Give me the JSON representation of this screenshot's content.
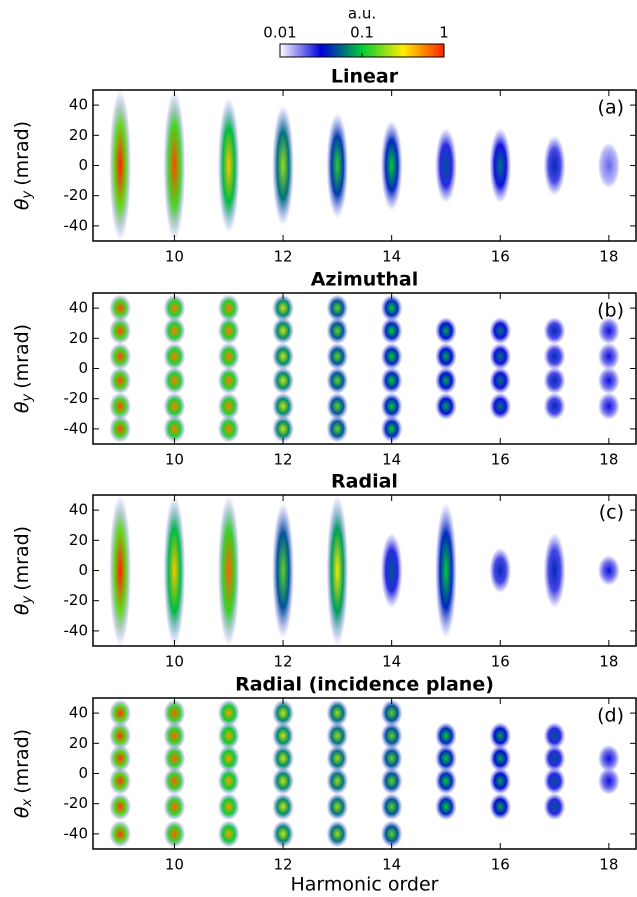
{
  "chart_data": [
    {
      "type": "heatmap",
      "title": "Linear",
      "panel": "(a)",
      "ylabel": {
        "symbol": "θ",
        "sub": "y",
        "unit": "(mrad)"
      },
      "colorbar": {
        "label": "a.u.",
        "lim": [
          0.01,
          1
        ],
        "ticks": [
          1,
          {
            "value": 0.1,
            "label": "0.1"
          },
          {
            "value": 0.01,
            "label": "0.01"
          }
        ],
        "log": true,
        "colormap": [
          "#ffffff",
          "#0000dd",
          "#00cc33",
          "#ffee00",
          "#ff2200"
        ]
      },
      "x": [
        9,
        10,
        11,
        12,
        13,
        14,
        15,
        16,
        17,
        18
      ],
      "values": [
        1,
        0.8,
        0.4,
        0.2,
        0.12,
        0.1,
        0.05,
        0.06,
        0.04,
        0.02
      ],
      "half_height": [
        50,
        50,
        45,
        40,
        35,
        30,
        25,
        25,
        20,
        15
      ],
      "lobes": [
        0
      ],
      "xlim": [
        8.5,
        18.5
      ],
      "ylim": [
        -50,
        50
      ],
      "xticks": [
        10,
        12,
        14,
        16,
        18
      ],
      "yticks": [
        -40,
        -20,
        0,
        20,
        40
      ]
    },
    {
      "type": "heatmap",
      "title": "Azimuthal",
      "panel": "(b)",
      "ylabel": {
        "symbol": "θ",
        "sub": "y",
        "unit": "(mrad)"
      },
      "x": [
        9,
        10,
        11,
        12,
        13,
        14,
        15,
        16,
        17,
        18
      ],
      "values": [
        0.8,
        0.6,
        0.6,
        0.25,
        0.15,
        0.1,
        0.08,
        0.06,
        0.04,
        0.03
      ],
      "half_height": [
        50,
        50,
        50,
        45,
        42,
        40,
        35,
        30,
        30,
        25
      ],
      "lobes": [
        -40,
        -25,
        -8,
        8,
        25,
        40
      ],
      "xlim": [
        8.5,
        18.5
      ],
      "ylim": [
        -50,
        50
      ],
      "xticks": [
        10,
        12,
        14,
        16,
        18
      ],
      "yticks": [
        -40,
        -20,
        0,
        20,
        40
      ]
    },
    {
      "type": "heatmap",
      "title": "Radial",
      "panel": "(c)",
      "ylabel": {
        "symbol": "θ",
        "sub": "y",
        "unit": "(mrad)"
      },
      "x": [
        9,
        10,
        11,
        12,
        13,
        14,
        15,
        16,
        17,
        18
      ],
      "values": [
        1,
        0.4,
        0.7,
        0.15,
        0.3,
        0.05,
        0.1,
        0.04,
        0.04,
        0.03
      ],
      "half_height": [
        50,
        50,
        50,
        45,
        50,
        25,
        45,
        15,
        25,
        10
      ],
      "lobes": [
        0
      ],
      "xlim": [
        8.5,
        18.5
      ],
      "ylim": [
        -50,
        50
      ],
      "xticks": [
        10,
        12,
        14,
        16,
        18
      ],
      "yticks": [
        -40,
        -20,
        0,
        20,
        40
      ]
    },
    {
      "type": "heatmap",
      "title": "Radial (incidence plane)",
      "panel": "(d)",
      "ylabel": {
        "symbol": "θ",
        "sub": "x",
        "unit": "(mrad)"
      },
      "xlabel": "Harmonic order",
      "x": [
        9,
        10,
        11,
        12,
        13,
        14,
        15,
        16,
        17,
        18
      ],
      "values": [
        0.9,
        0.7,
        0.5,
        0.25,
        0.2,
        0.15,
        0.1,
        0.08,
        0.05,
        0.03
      ],
      "half_height": [
        50,
        50,
        50,
        45,
        45,
        40,
        35,
        30,
        25,
        20
      ],
      "lobes": [
        -40,
        -22,
        -5,
        10,
        25,
        40
      ],
      "xlim": [
        8.5,
        18.5
      ],
      "ylim": [
        -50,
        50
      ],
      "xticks": [
        10,
        12,
        14,
        16,
        18
      ],
      "yticks": [
        -40,
        -20,
        0,
        20,
        40
      ]
    }
  ]
}
